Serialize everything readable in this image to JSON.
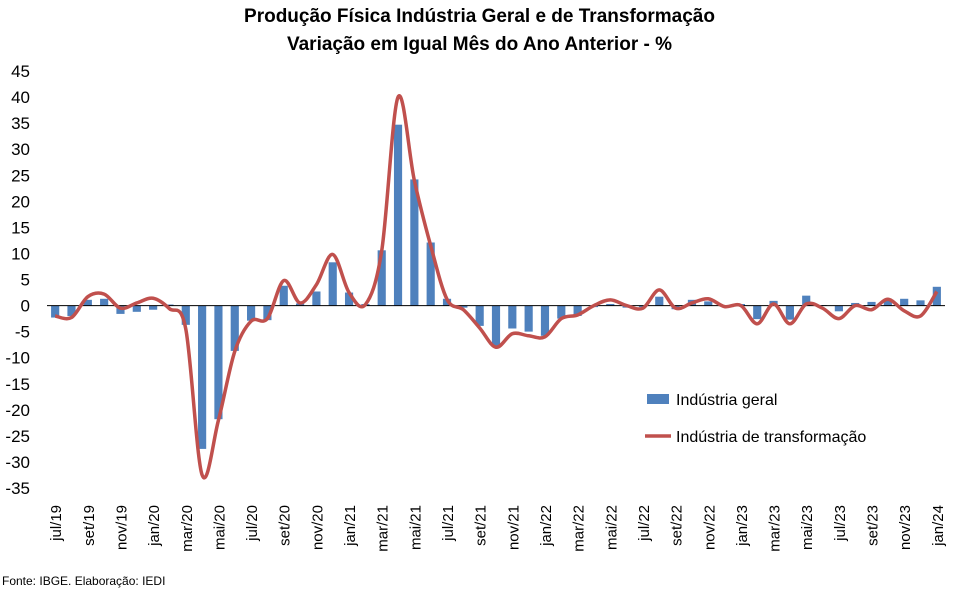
{
  "chart_data": {
    "type": "bar+line",
    "title": "Produção Física Indústria Geral e de Transformação",
    "subtitle": "Variação em Igual Mês do Ano Anterior - %",
    "ylim": [
      -35,
      45
    ],
    "yticks": [
      45,
      40,
      35,
      30,
      25,
      20,
      15,
      10,
      5,
      0,
      -5,
      -10,
      -15,
      -20,
      -25,
      -30,
      -35
    ],
    "x_tick_labels": [
      "jul/19",
      "set/19",
      "nov/19",
      "jan/20",
      "mar/20",
      "mai/20",
      "jul/20",
      "set/20",
      "nov/20",
      "jan/21",
      "mar/21",
      "mai/21",
      "jul/21",
      "set/21",
      "nov/21",
      "jan/22",
      "mar/22",
      "mai/22",
      "jul/22",
      "set/22",
      "nov/22",
      "jan/23",
      "mar/23",
      "mai/23",
      "jul/23",
      "set/23",
      "nov/23",
      "jan/24"
    ],
    "categories": [
      "jul/19",
      "ago/19",
      "set/19",
      "out/19",
      "nov/19",
      "dez/19",
      "jan/20",
      "fev/20",
      "mar/20",
      "abr/20",
      "mai/20",
      "jun/20",
      "jul/20",
      "ago/20",
      "set/20",
      "out/20",
      "nov/20",
      "dez/20",
      "jan/21",
      "fev/21",
      "mar/21",
      "abr/21",
      "mai/21",
      "jun/21",
      "jul/21",
      "ago/21",
      "set/21",
      "out/21",
      "nov/21",
      "dez/21",
      "jan/22",
      "fev/22",
      "mar/22",
      "abr/22",
      "mai/22",
      "jun/22",
      "jul/22",
      "ago/22",
      "set/22",
      "out/22",
      "nov/22",
      "dez/22",
      "jan/23",
      "fev/23",
      "mar/23",
      "abr/23",
      "mai/23",
      "jun/23",
      "jul/23",
      "ago/23",
      "set/23",
      "out/23",
      "nov/23",
      "dez/23",
      "jan/24"
    ],
    "series": [
      {
        "name": "Indústria geral",
        "type": "bar",
        "color": "#4f81bd",
        "values": [
          -2.3,
          -2.0,
          1.1,
          1.3,
          -1.6,
          -1.2,
          -0.8,
          0.2,
          -3.7,
          -27.5,
          -21.8,
          -8.7,
          -2.9,
          -2.8,
          3.8,
          0.4,
          2.7,
          8.3,
          2.5,
          0.3,
          10.6,
          34.7,
          24.2,
          12.1,
          1.3,
          -0.4,
          -3.9,
          -7.7,
          -4.4,
          -5.0,
          -5.8,
          -2.5,
          -2.0,
          -0.3,
          0.3,
          -0.4,
          -0.3,
          1.7,
          -0.7,
          1.1,
          0.8,
          -0.1,
          0.3,
          -2.6,
          0.9,
          -2.7,
          1.9,
          0.1,
          -1.1,
          0.5,
          0.7,
          1.0,
          1.3,
          1.0,
          3.6
        ]
      },
      {
        "name": "Indústria de transformação",
        "type": "line",
        "color": "#c0504d",
        "values": [
          -2.0,
          -2.3,
          1.7,
          2.2,
          -0.5,
          0.5,
          1.4,
          -0.6,
          -4.5,
          -32.5,
          -22.0,
          -8.8,
          -3.0,
          -2.5,
          4.8,
          0.5,
          4.0,
          9.8,
          2.5,
          0.2,
          10.5,
          40.0,
          24.0,
          11.5,
          1.2,
          -0.8,
          -4.3,
          -8.0,
          -5.4,
          -5.8,
          -6.0,
          -2.5,
          -1.8,
          0.0,
          1.1,
          0.0,
          -0.5,
          3.0,
          -0.5,
          0.5,
          1.3,
          -0.2,
          0.0,
          -3.5,
          0.3,
          -3.5,
          0.3,
          -0.5,
          -2.5,
          0.0,
          -0.8,
          1.2,
          -1.0,
          -2.0,
          2.7
        ]
      }
    ],
    "legend": {
      "placement": "right-center"
    }
  },
  "source": "Fonte: IBGE. Elaboração: IEDI"
}
